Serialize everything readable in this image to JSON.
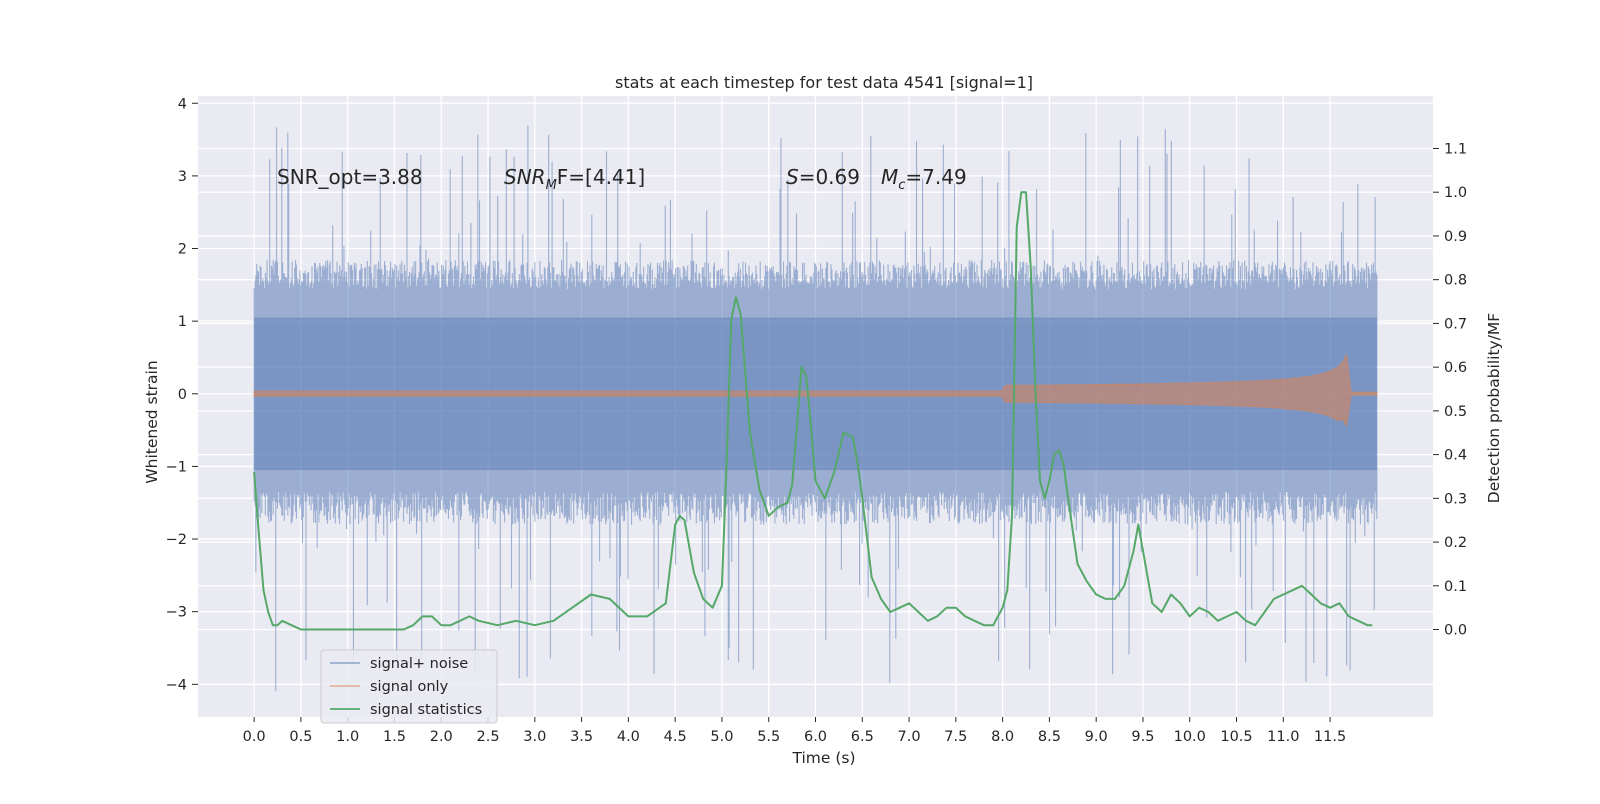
{
  "chart_data": {
    "type": "line",
    "title": "stats at each timestep for test data 4541 [signal=1]",
    "xlabel": "Time (s)",
    "ylabel": "Whitened strain",
    "ylabel_right": "Detection probability/MF",
    "xlim": [
      -0.6,
      12.6
    ],
    "ylim": [
      -4.45,
      4.1
    ],
    "ylim_right": [
      -0.2,
      1.22
    ],
    "grid": true,
    "background": "#eaeaf2",
    "x_ticks": [
      "0.0",
      "0.5",
      "1.0",
      "1.5",
      "2.0",
      "2.5",
      "3.0",
      "3.5",
      "4.0",
      "4.5",
      "5.0",
      "5.5",
      "6.0",
      "6.5",
      "7.0",
      "7.5",
      "8.0",
      "8.5",
      "9.0",
      "9.5",
      "10.0",
      "10.5",
      "11.0",
      "11.5"
    ],
    "y_ticks": [
      "4",
      "3",
      "2",
      "1",
      "0",
      "−1",
      "−2",
      "−3",
      "−4"
    ],
    "y_ticks_right": [
      "1.1",
      "1.0",
      "0.9",
      "0.8",
      "0.7",
      "0.6",
      "0.5",
      "0.4",
      "0.3",
      "0.2",
      "0.1",
      "0.0"
    ],
    "annotations": {
      "snr_opt": "SNR_opt=3.88",
      "snr_mf_main": "SNR",
      "snr_mf_sub": "M",
      "snr_mf_rest": "F=[4.41]",
      "s_label": "S",
      "s_value": "=0.69",
      "mc_main": "M",
      "mc_sub": "c",
      "mc_value": "=7.49"
    },
    "legend": {
      "placement": "lower-left",
      "entries": [
        "signal+ noise",
        "signal only",
        "signal statistics"
      ]
    },
    "series": [
      {
        "name": "signal+ noise",
        "color": "#4c72b0",
        "type": "band",
        "x_range": [
          0.0,
          12.0
        ],
        "typical_upper": 1.6,
        "typical_lower": -1.5,
        "max_value": 3.7,
        "min_value": -4.1
      },
      {
        "name": "signal only",
        "color": "#dd8452",
        "type": "chirp",
        "x_range": [
          0.0,
          12.0
        ],
        "peak_time": 11.68,
        "peak_amplitude": 0.55,
        "ymin_peak": -0.45
      },
      {
        "name": "signal statistics",
        "color": "#55a868",
        "x": [
          0.0,
          0.05,
          0.1,
          0.15,
          0.2,
          0.25,
          0.3,
          0.4,
          0.5,
          0.6,
          0.8,
          1.0,
          1.2,
          1.4,
          1.6,
          1.7,
          1.8,
          1.9,
          2.0,
          2.1,
          2.2,
          2.3,
          2.4,
          2.6,
          2.8,
          3.0,
          3.2,
          3.4,
          3.6,
          3.8,
          4.0,
          4.2,
          4.4,
          4.45,
          4.5,
          4.55,
          4.6,
          4.7,
          4.8,
          4.9,
          5.0,
          5.05,
          5.1,
          5.15,
          5.2,
          5.3,
          5.4,
          5.5,
          5.6,
          5.7,
          5.75,
          5.8,
          5.85,
          5.9,
          5.95,
          6.0,
          6.1,
          6.2,
          6.3,
          6.4,
          6.45,
          6.5,
          6.55,
          6.6,
          6.7,
          6.8,
          6.9,
          7.0,
          7.1,
          7.2,
          7.3,
          7.4,
          7.5,
          7.6,
          7.7,
          7.8,
          7.9,
          7.95,
          8.0,
          8.05,
          8.1,
          8.15,
          8.2,
          8.25,
          8.3,
          8.35,
          8.4,
          8.45,
          8.5,
          8.55,
          8.6,
          8.65,
          8.7,
          8.8,
          8.9,
          9.0,
          9.1,
          9.2,
          9.3,
          9.4,
          9.45,
          9.5,
          9.55,
          9.6,
          9.7,
          9.8,
          9.9,
          10.0,
          10.1,
          10.2,
          10.3,
          10.4,
          10.5,
          10.6,
          10.7,
          10.8,
          10.9,
          11.0,
          11.1,
          11.2,
          11.3,
          11.4,
          11.5,
          11.6,
          11.7,
          11.8,
          11.9,
          11.95
        ],
        "values": [
          0.36,
          0.22,
          0.09,
          0.04,
          0.01,
          0.01,
          0.02,
          0.01,
          0.0,
          0.0,
          0.0,
          0.0,
          0.0,
          0.0,
          0.0,
          0.01,
          0.03,
          0.03,
          0.01,
          0.01,
          0.02,
          0.03,
          0.02,
          0.01,
          0.02,
          0.01,
          0.02,
          0.05,
          0.08,
          0.07,
          0.03,
          0.03,
          0.06,
          0.15,
          0.24,
          0.26,
          0.25,
          0.13,
          0.07,
          0.05,
          0.1,
          0.38,
          0.71,
          0.76,
          0.72,
          0.45,
          0.32,
          0.26,
          0.28,
          0.29,
          0.33,
          0.46,
          0.6,
          0.58,
          0.47,
          0.34,
          0.3,
          0.36,
          0.45,
          0.44,
          0.38,
          0.3,
          0.21,
          0.12,
          0.07,
          0.04,
          0.05,
          0.06,
          0.04,
          0.02,
          0.03,
          0.05,
          0.05,
          0.03,
          0.02,
          0.01,
          0.01,
          0.03,
          0.05,
          0.09,
          0.26,
          0.92,
          1.0,
          1.0,
          0.83,
          0.55,
          0.34,
          0.3,
          0.34,
          0.4,
          0.41,
          0.38,
          0.3,
          0.15,
          0.11,
          0.08,
          0.07,
          0.07,
          0.1,
          0.18,
          0.24,
          0.18,
          0.12,
          0.06,
          0.04,
          0.08,
          0.06,
          0.03,
          0.05,
          0.04,
          0.02,
          0.03,
          0.04,
          0.02,
          0.01,
          0.04,
          0.07,
          0.08,
          0.09,
          0.1,
          0.08,
          0.06,
          0.05,
          0.06,
          0.03,
          0.02,
          0.01,
          0.01
        ]
      }
    ]
  }
}
